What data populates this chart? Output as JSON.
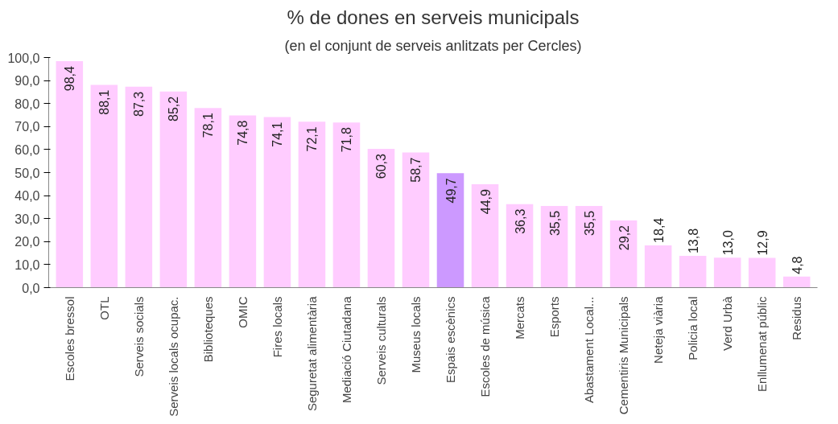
{
  "chart_data": {
    "type": "bar",
    "title": "% de dones en serveis municipals",
    "subtitle": "(en el conjunt de serveis anlitzats per Cercles)",
    "categories": [
      "Escoles bressol",
      "OTL",
      "Serveis socials",
      "Serveis locals ocupac.",
      "Biblioteques",
      "OMIC",
      "Fires locals",
      "Seguretat alimentària",
      "Mediació Ciutadana",
      "Serveis culturals",
      "Museus locals",
      "Espais escènics",
      "Escoles de música",
      "Mercats",
      "Esports",
      "Abastament Local...",
      "Cementiris Municipals",
      "Neteja viària",
      "Policia local",
      "Verd Urbà",
      "Enllumenat públic",
      "Residus"
    ],
    "values": [
      98.4,
      88.1,
      87.3,
      85.2,
      78.1,
      74.8,
      74.1,
      72.1,
      71.8,
      60.3,
      58.7,
      49.7,
      44.9,
      36.3,
      35.5,
      35.5,
      29.2,
      18.4,
      13.8,
      13.0,
      12.9,
      4.8
    ],
    "colors": [
      "#ffccff",
      "#ffccff",
      "#ffccff",
      "#ffccff",
      "#ffccff",
      "#ffccff",
      "#ffccff",
      "#ffccff",
      "#ffccff",
      "#ffccff",
      "#ffccff",
      "#cc99ff",
      "#ffccff",
      "#ffccff",
      "#ffccff",
      "#ffccff",
      "#ffccff",
      "#ffccff",
      "#ffccff",
      "#ffccff",
      "#ffccff",
      "#ffccff"
    ],
    "value_labels": [
      "98,4",
      "88,1",
      "87,3",
      "85,2",
      "78,1",
      "74,8",
      "74,1",
      "72,1",
      "71,8",
      "60,3",
      "58,7",
      "49,7",
      "44,9",
      "36,3",
      "35,5",
      "35,5",
      "29,2",
      "18,4",
      "13,8",
      "13,0",
      "12,9",
      "4,8"
    ],
    "ylim": [
      0,
      100
    ],
    "yticks": [
      {
        "value": 0,
        "label": "0,0"
      },
      {
        "value": 10,
        "label": "10,0"
      },
      {
        "value": 20,
        "label": "20,0"
      },
      {
        "value": 30,
        "label": "30,0"
      },
      {
        "value": 40,
        "label": "40,0"
      },
      {
        "value": 50,
        "label": "50,0"
      },
      {
        "value": 60,
        "label": "60,0"
      },
      {
        "value": 70,
        "label": "70,0"
      },
      {
        "value": 80,
        "label": "80,0"
      },
      {
        "value": 90,
        "label": "90,0"
      },
      {
        "value": 100,
        "label": "100,0"
      }
    ],
    "grid": false
  }
}
